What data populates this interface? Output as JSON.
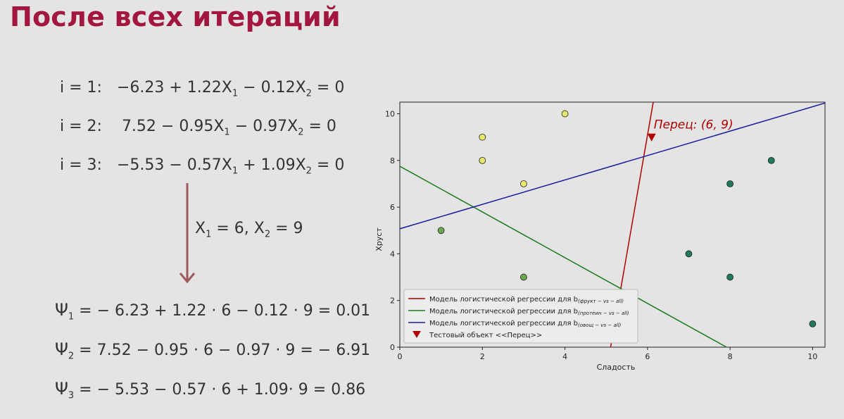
{
  "slide": {
    "title": "После всех итераций"
  },
  "iterations": [
    {
      "label": "i = 1:",
      "c0": "−6.23",
      "op1": "+",
      "c1": "1.22",
      "op2": "−",
      "c2": "0.12",
      "rhs": "= 0"
    },
    {
      "label": "i = 2:",
      "c0": "7.52",
      "op1": "−",
      "c1": "0.95",
      "op2": "−",
      "c2": "0.97",
      "rhs": "= 0"
    },
    {
      "label": "i = 3:",
      "c0": "−5.53",
      "op1": "−",
      "c1": "0.57",
      "op2": "+",
      "c2": "1.09",
      "rhs": "= 0"
    }
  ],
  "substitution": {
    "x1": "6",
    "x2": "9"
  },
  "results": [
    {
      "sub": "1",
      "expr": "= − 6.23 + 1.22 · 6 − 0.12 · 9 = 0.01"
    },
    {
      "sub": "2",
      "expr": "= 7.52 − 0.95 · 6 − 0.97 · 9 = − 6.91"
    },
    {
      "sub": "3",
      "expr": "= − 5.53 − 0.57 · 6 + 1.09· 9 = 0.86"
    }
  ],
  "chart_data": {
    "type": "scatter",
    "xlabel": "Сладость",
    "ylabel": "Хруст",
    "xlim": [
      0,
      10.3
    ],
    "ylim": [
      0,
      10.5
    ],
    "xticks": [
      0,
      2,
      4,
      6,
      8,
      10
    ],
    "yticks": [
      0,
      2,
      4,
      6,
      8,
      10
    ],
    "grid": false,
    "legend_position": "bottom-left",
    "lines": [
      {
        "name": "Модель логистической регрессии для b",
        "subscript": "(фрукт − vs − all)",
        "color": "#b00000",
        "c0": -6.23,
        "c1": 1.22,
        "c2": -0.12
      },
      {
        "name": "Модель логистической регрессии для b",
        "subscript": "(протеин − vs − all)",
        "color": "#1b7a1b",
        "c0": 7.52,
        "c1": -0.95,
        "c2": -0.97
      },
      {
        "name": "Модель логистической регрессии для b",
        "subscript": "(овощ − vs − all)",
        "color": "#1a1aa0",
        "c0": -5.53,
        "c1": -0.57,
        "c2": 1.09
      }
    ],
    "points_fruit": {
      "color": "#e8e86a",
      "x": [
        2,
        2,
        3,
        4
      ],
      "y": [
        9,
        8,
        7,
        10
      ]
    },
    "points_protein": {
      "color": "#6aa84f",
      "x": [
        1,
        3
      ],
      "y": [
        5,
        3
      ]
    },
    "points_vegetable": {
      "color": "#1e7a5a",
      "x": [
        7,
        8,
        8,
        9,
        10
      ],
      "y": [
        4,
        7,
        3,
        8,
        1
      ]
    },
    "test_point": {
      "label": "Тестовый объект <<Перец>>",
      "x": 6.1,
      "y": 9,
      "color": "#b00000"
    },
    "annotation": "Перец: (6, 9)"
  }
}
